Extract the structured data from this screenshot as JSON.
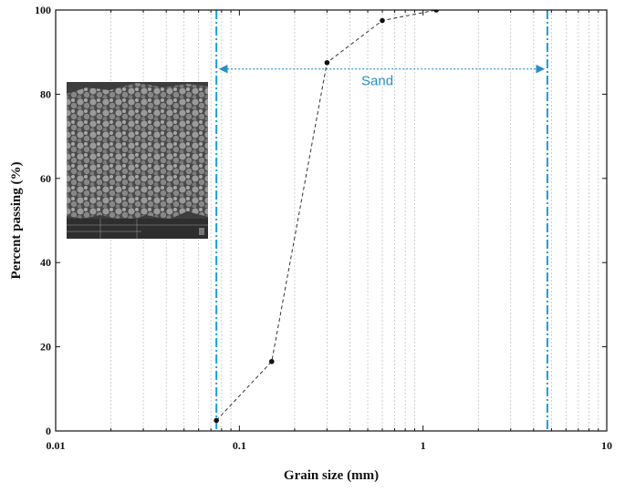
{
  "chart_data": {
    "type": "line",
    "xlabel": "Grain size (mm)",
    "ylabel": "Percent passing (%)",
    "xscale": "log",
    "xlim": [
      0.01,
      10
    ],
    "ylim": [
      0,
      100
    ],
    "x_ticks": [
      {
        "value": 0.01,
        "label": "0.01"
      },
      {
        "value": 0.1,
        "label": "0.1"
      },
      {
        "value": 1,
        "label": "1"
      },
      {
        "value": 10,
        "label": "10"
      }
    ],
    "y_ticks": [
      {
        "value": 0,
        "label": "0"
      },
      {
        "value": 20,
        "label": "20"
      },
      {
        "value": 40,
        "label": "40"
      },
      {
        "value": 60,
        "label": "60"
      },
      {
        "value": 80,
        "label": "80"
      },
      {
        "value": 100,
        "label": "100"
      }
    ],
    "grid": "vertical minor log gridlines",
    "series": [
      {
        "line_style": "dashed",
        "color": "#333333",
        "x": [
          0.075,
          0.15,
          0.3,
          0.6,
          1.18
        ],
        "y": [
          2.5,
          16.5,
          87.5,
          97.5,
          100
        ]
      }
    ],
    "reference_lines": [
      {
        "x": 0.075,
        "style": "dash-dot",
        "color": "#1e9bd7"
      },
      {
        "x": 4.75,
        "style": "dash-dot",
        "color": "#1e9bd7"
      }
    ],
    "annotations": [
      {
        "text": "Sand",
        "arrow_from_x": 0.075,
        "arrow_to_x": 4.75,
        "y": 86,
        "color": "#2a8fc6"
      }
    ],
    "inset": {
      "type": "SEM micrograph image",
      "position": "upper-left"
    }
  }
}
